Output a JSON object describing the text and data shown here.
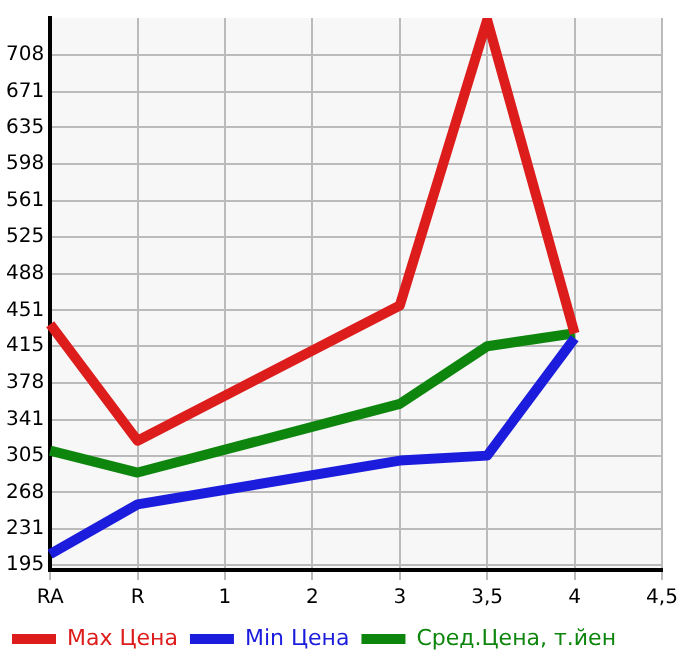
{
  "chart_data": {
    "type": "line",
    "categories": [
      "RA",
      "R",
      "1",
      "2",
      "3",
      "3,5",
      "4",
      "4,5"
    ],
    "series": [
      {
        "name": "Max Цена",
        "color": "#dd1c1c",
        "values": [
          437,
          320,
          null,
          null,
          456,
          743,
          428,
          null
        ]
      },
      {
        "name": "Min Цена",
        "color": "#1c1cdd",
        "values": [
          206,
          256,
          null,
          null,
          300,
          305,
          423,
          null
        ]
      },
      {
        "name": "Сред.Цена, т.йен",
        "color": "#0e860e",
        "values": [
          310,
          288,
          null,
          null,
          357,
          415,
          428,
          null
        ]
      }
    ],
    "ylim": [
      190,
      745
    ],
    "yticks": [
      195,
      231,
      268,
      305,
      341,
      378,
      415,
      451,
      488,
      525,
      561,
      598,
      635,
      671,
      708
    ],
    "grid": true,
    "legend": "bottom",
    "marker": "none",
    "line_style": "solid"
  }
}
